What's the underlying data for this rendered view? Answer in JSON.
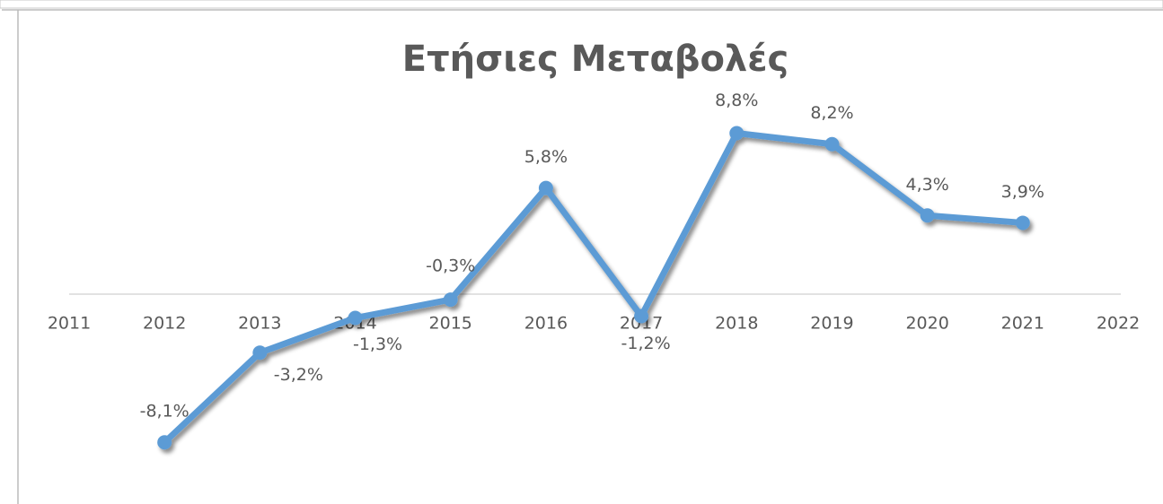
{
  "chart_data": {
    "type": "line",
    "title": "Ετήσιες Μεταβολές",
    "x": [
      2012,
      2013,
      2014,
      2015,
      2016,
      2017,
      2018,
      2019,
      2020,
      2021
    ],
    "values": [
      -8.1,
      -3.2,
      -1.3,
      -0.3,
      5.8,
      -1.2,
      8.8,
      8.2,
      4.3,
      3.9
    ],
    "value_labels": [
      "-8,1%",
      "-3,2%",
      "-1,3%",
      "-0,3%",
      "5,8%",
      "-1,2%",
      "8,8%",
      "8,2%",
      "4,3%",
      "3,9%"
    ],
    "color": "#5b9bd5",
    "xlim": [
      2011,
      2022
    ],
    "xticks": [
      2011,
      2012,
      2013,
      2014,
      2015,
      2016,
      2017,
      2018,
      2019,
      2020,
      2021,
      2022
    ],
    "ylim": [
      -10,
      10
    ]
  }
}
